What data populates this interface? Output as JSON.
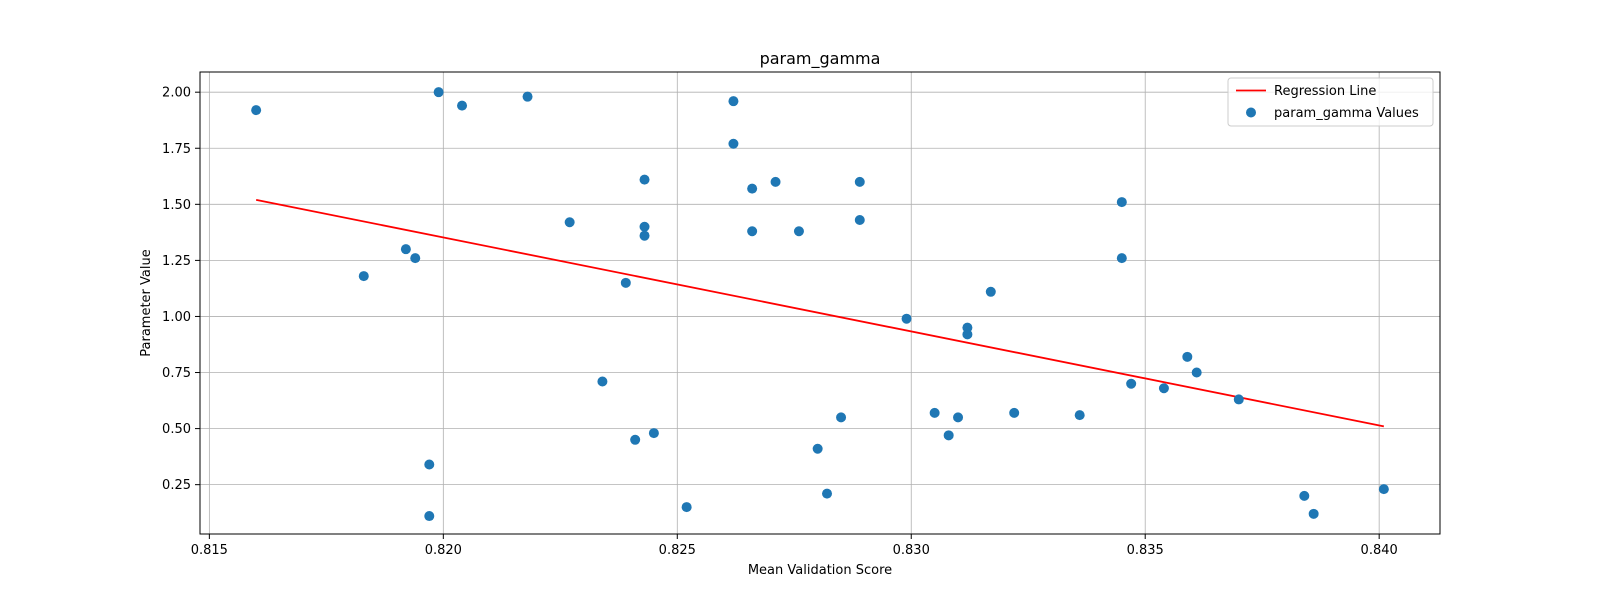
{
  "chart_data": {
    "type": "scatter",
    "title": "param_gamma",
    "xlabel": "Mean Validation Score",
    "ylabel": "Parameter Value",
    "xlim": [
      0.8148,
      0.8413
    ],
    "ylim": [
      0.03,
      2.09
    ],
    "x_ticks": [
      0.815,
      0.82,
      0.825,
      0.83,
      0.835,
      0.84
    ],
    "x_tick_labels": [
      "0.815",
      "0.820",
      "0.825",
      "0.830",
      "0.835",
      "0.840"
    ],
    "y_ticks": [
      0.25,
      0.5,
      0.75,
      1.0,
      1.25,
      1.5,
      1.75,
      2.0
    ],
    "y_tick_labels": [
      "0.25",
      "0.50",
      "0.75",
      "1.00",
      "1.25",
      "1.50",
      "1.75",
      "2.00"
    ],
    "grid": true,
    "legend_position": "top-right",
    "colors": {
      "points": "#1f77b4",
      "regression": "#ff0000",
      "grid": "#b0b0b0"
    },
    "series": [
      {
        "name": "param_gamma Values",
        "kind": "scatter",
        "x": [
          0.816,
          0.8199,
          0.8204,
          0.8218,
          0.8262,
          0.8262,
          0.8243,
          0.8266,
          0.8271,
          0.8289,
          0.8289,
          0.8227,
          0.8243,
          0.8243,
          0.8266,
          0.8276,
          0.8345,
          0.8345,
          0.8183,
          0.8192,
          0.8194,
          0.8239,
          0.8317,
          0.8299,
          0.8312,
          0.8312,
          0.8359,
          0.8361,
          0.8234,
          0.8347,
          0.8354,
          0.837,
          0.8305,
          0.831,
          0.8322,
          0.8336,
          0.8285,
          0.8308,
          0.8245,
          0.8241,
          0.828,
          0.8197,
          0.8282,
          0.8252,
          0.8197,
          0.8384,
          0.8386,
          0.8401
        ],
        "y": [
          1.92,
          2.0,
          1.94,
          1.98,
          1.96,
          1.77,
          1.61,
          1.57,
          1.6,
          1.6,
          1.43,
          1.42,
          1.4,
          1.36,
          1.38,
          1.38,
          1.51,
          1.26,
          1.18,
          1.3,
          1.26,
          1.15,
          1.11,
          0.99,
          0.95,
          0.92,
          0.82,
          0.75,
          0.71,
          0.7,
          0.68,
          0.63,
          0.57,
          0.55,
          0.57,
          0.56,
          0.55,
          0.47,
          0.48,
          0.45,
          0.41,
          0.34,
          0.21,
          0.15,
          0.11,
          0.2,
          0.12,
          0.23
        ]
      },
      {
        "name": "Regression Line",
        "kind": "line",
        "x": [
          0.816,
          0.8401
        ],
        "y": [
          1.52,
          0.51
        ]
      }
    ]
  }
}
